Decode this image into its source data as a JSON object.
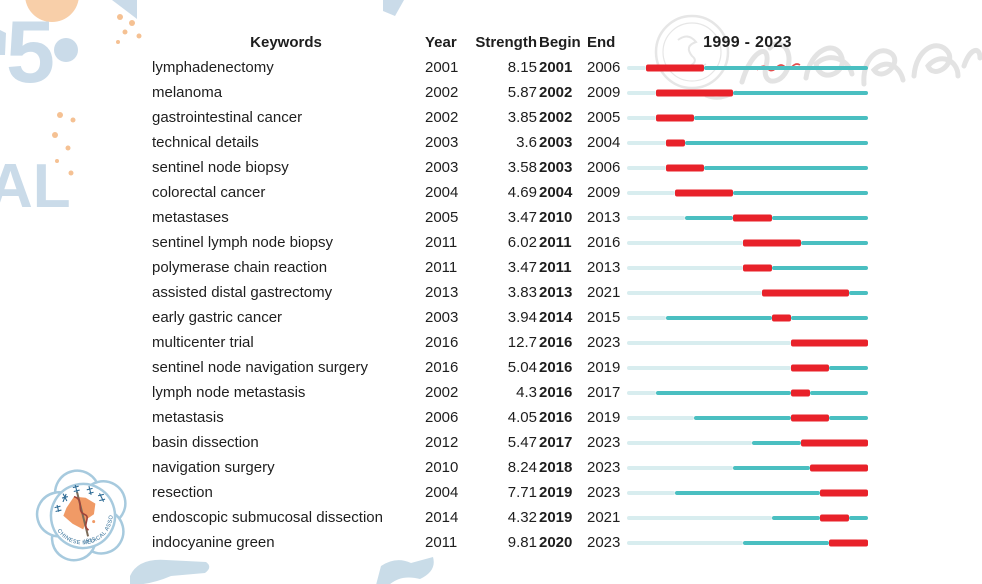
{
  "figure": {
    "headers": {
      "keywords": "Keywords",
      "year": "Year",
      "strength": "Strength",
      "begin": "Begin",
      "end": "End"
    },
    "timeline_title": "1999 - 2023"
  },
  "chart_data": {
    "type": "table",
    "columns": [
      "Keywords",
      "Year",
      "Strength",
      "Begin",
      "End"
    ],
    "timeline": {
      "label": "1999 - 2023",
      "start": 1999,
      "end": 2023
    },
    "bar_encoding": {
      "pale_segment": "years before keyword first appearance",
      "teal_segment": "years keyword present outside burst",
      "red_segment": "citation burst period Begin-End"
    },
    "rows": [
      {
        "keyword": "lymphadenectomy",
        "year": 2001,
        "strength": 8.15,
        "begin": 2001,
        "end": 2006
      },
      {
        "keyword": "melanoma",
        "year": 2002,
        "strength": 5.87,
        "begin": 2002,
        "end": 2009
      },
      {
        "keyword": "gastrointestinal cancer",
        "year": 2002,
        "strength": 3.85,
        "begin": 2002,
        "end": 2005
      },
      {
        "keyword": "technical details",
        "year": 2003,
        "strength": 3.6,
        "begin": 2003,
        "end": 2004
      },
      {
        "keyword": "sentinel node biopsy",
        "year": 2003,
        "strength": 3.58,
        "begin": 2003,
        "end": 2006
      },
      {
        "keyword": "colorectal cancer",
        "year": 2004,
        "strength": 4.69,
        "begin": 2004,
        "end": 2009
      },
      {
        "keyword": "metastases",
        "year": 2005,
        "strength": 3.47,
        "begin": 2010,
        "end": 2013
      },
      {
        "keyword": "sentinel lymph node biopsy",
        "year": 2011,
        "strength": 6.02,
        "begin": 2011,
        "end": 2016
      },
      {
        "keyword": "polymerase chain reaction",
        "year": 2011,
        "strength": 3.47,
        "begin": 2011,
        "end": 2013
      },
      {
        "keyword": "assisted distal gastrectomy",
        "year": 2013,
        "strength": 3.83,
        "begin": 2013,
        "end": 2021
      },
      {
        "keyword": "early gastric cancer",
        "year": 2003,
        "strength": 3.94,
        "begin": 2014,
        "end": 2015
      },
      {
        "keyword": "multicenter trial",
        "year": 2016,
        "strength": 12.7,
        "begin": 2016,
        "end": 2023
      },
      {
        "keyword": "sentinel node navigation surgery",
        "year": 2016,
        "strength": 5.04,
        "begin": 2016,
        "end": 2019
      },
      {
        "keyword": "lymph node metastasis",
        "year": 2002,
        "strength": 4.3,
        "begin": 2016,
        "end": 2017
      },
      {
        "keyword": "metastasis",
        "year": 2006,
        "strength": 4.05,
        "begin": 2016,
        "end": 2019
      },
      {
        "keyword": "basin dissection",
        "year": 2012,
        "strength": 5.47,
        "begin": 2017,
        "end": 2023
      },
      {
        "keyword": "navigation surgery",
        "year": 2010,
        "strength": 8.24,
        "begin": 2018,
        "end": 2023
      },
      {
        "keyword": "resection",
        "year": 2004,
        "strength": 7.71,
        "begin": 2019,
        "end": 2023
      },
      {
        "keyword": "endoscopic submucosal dissection",
        "year": 2014,
        "strength": 4.32,
        "begin": 2019,
        "end": 2021
      },
      {
        "keyword": "indocyanine green",
        "year": 2011,
        "strength": 9.81,
        "begin": 2020,
        "end": 2023
      }
    ]
  },
  "colors": {
    "burst_red": "#e8222a",
    "timeline_teal": "#4abfc1",
    "timeline_pale": "#d8edef",
    "text": "#1e1e1e",
    "watermark_blue": "#cadbe9",
    "watermark_peach": "#f6c9a0",
    "emblem_blue": "#a7cade",
    "emblem_orange": "#f09a66"
  },
  "watermark": {
    "calligraphy_text": "中华医学会",
    "background_letters": [
      "5",
      "AL"
    ],
    "emblem": {
      "arc_text_top": "中华医学会",
      "arc_text_bottom": "CHINESE MEDICAL ASSOCIATION",
      "year": "1915"
    }
  }
}
